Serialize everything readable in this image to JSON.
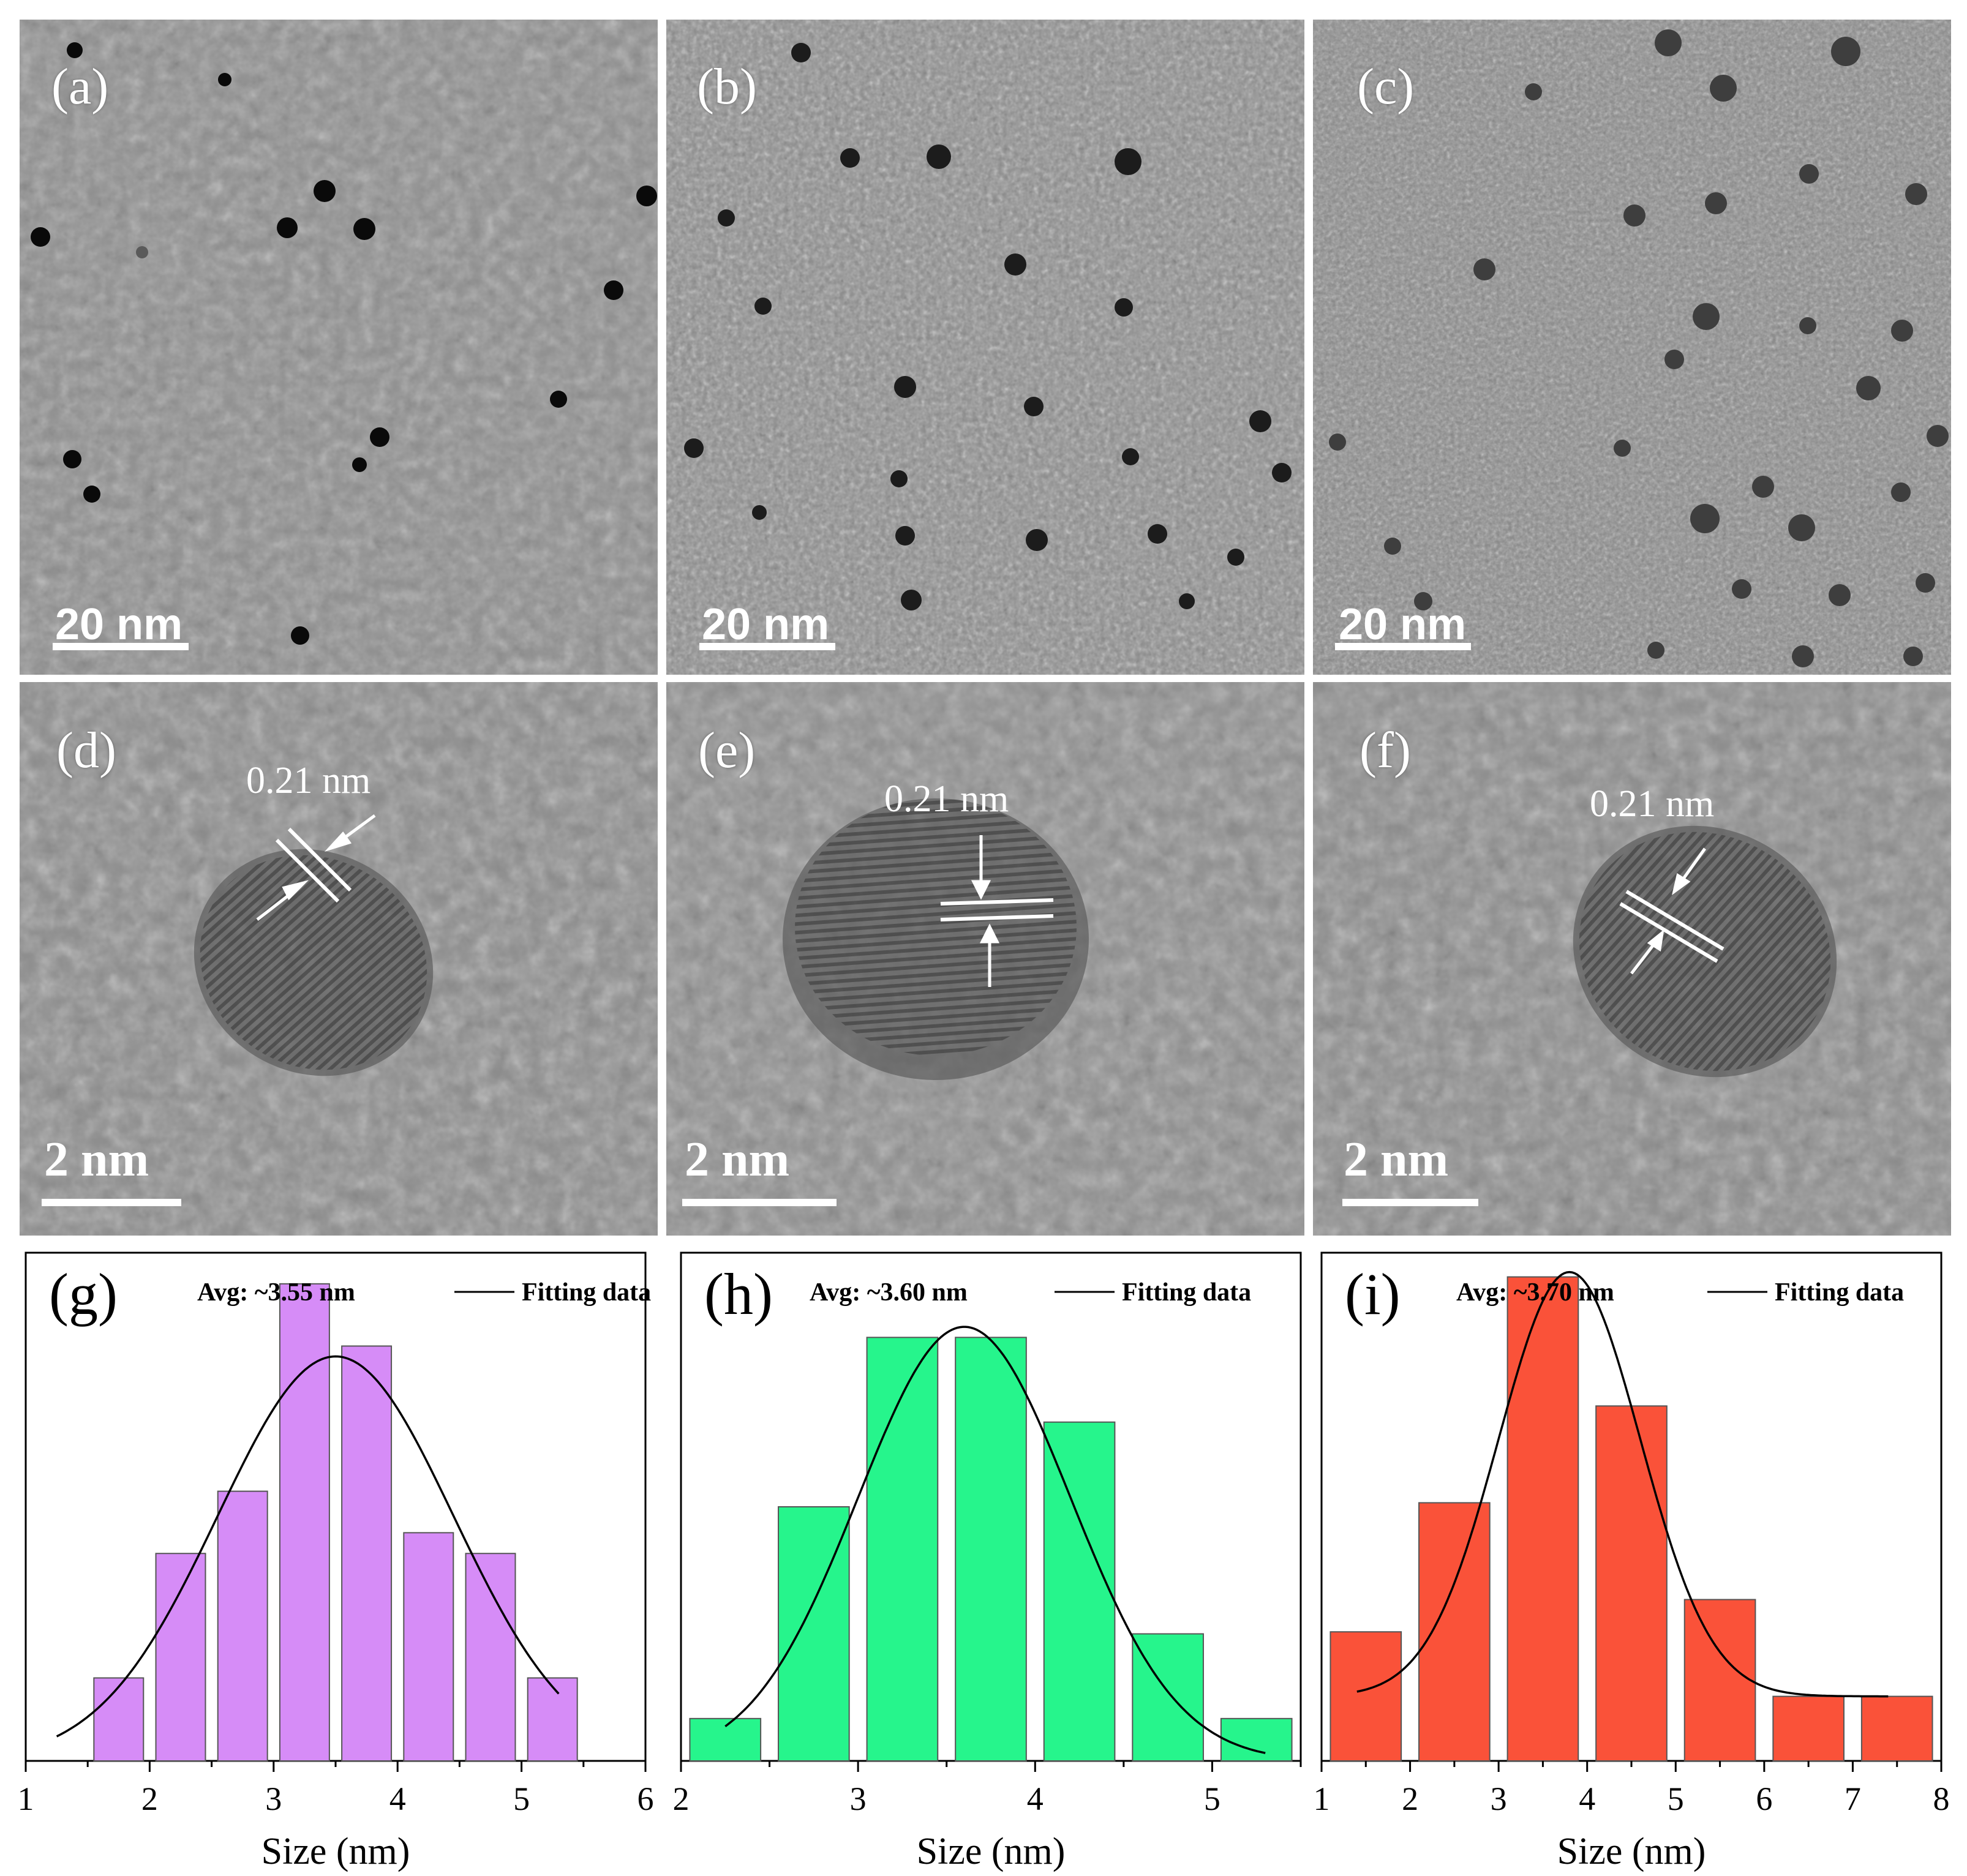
{
  "figure": {
    "tem_panels": [
      {
        "label": "(a)",
        "scale": "20 nm"
      },
      {
        "label": "(b)",
        "scale": "20 nm"
      },
      {
        "label": "(c)",
        "scale": "20 nm"
      }
    ],
    "hrtem_panels": [
      {
        "label": "(d)",
        "scale": "2 nm",
        "spacing": "0.21 nm"
      },
      {
        "label": "(e)",
        "scale": "2 nm",
        "spacing": "0.21 nm"
      },
      {
        "label": "(f)",
        "scale": "2 nm",
        "spacing": "0.21 nm"
      }
    ]
  },
  "chart_data": [
    {
      "type": "bar",
      "panel_label": "(g)",
      "annotation": "Avg: ~3.55 nm",
      "legend": "Fitting data",
      "xlabel": "Size (nm)",
      "xlim": [
        1,
        6
      ],
      "x_ticks": [
        "1",
        "2",
        "3",
        "4",
        "5",
        "6"
      ],
      "bar_width": 0.4,
      "x": [
        1.75,
        2.25,
        2.75,
        3.25,
        3.75,
        4.25,
        4.75,
        5.25
      ],
      "values": [
        4,
        10,
        13,
        23,
        20,
        11,
        10,
        4
      ],
      "ylim": [
        0,
        24.5
      ],
      "color": "#d68cf7",
      "fit": {
        "mean": 3.5,
        "sigma": 0.95,
        "amplitude": 19.5,
        "x_range": [
          1.25,
          5.3
        ]
      }
    },
    {
      "type": "bar",
      "panel_label": "(h)",
      "annotation": "Avg: ~3.60 nm",
      "legend": "Fitting data",
      "xlabel": "Size (nm)",
      "xlim": [
        2,
        5.5
      ],
      "x_ticks": [
        "2",
        "3",
        "4",
        "5"
      ],
      "bar_width": 0.4,
      "x": [
        2.25,
        2.75,
        3.25,
        3.75,
        4.25,
        4.75,
        5.25
      ],
      "values": [
        2,
        12,
        20,
        20,
        16,
        6,
        2
      ],
      "ylim": [
        0,
        24
      ],
      "color": "#26f58c",
      "fit": {
        "mean": 3.6,
        "sigma": 0.6,
        "amplitude": 20.5,
        "x_range": [
          2.25,
          5.3
        ]
      }
    },
    {
      "type": "bar",
      "panel_label": "(i)",
      "annotation": "Avg: ~3.70 nm",
      "legend": "Fitting data",
      "xlabel": "Size (nm)",
      "xlim": [
        1,
        8
      ],
      "x_ticks": [
        "1",
        "2",
        "3",
        "4",
        "5",
        "6",
        "7",
        "8"
      ],
      "bar_width": 0.8,
      "x": [
        1.5,
        2.5,
        3.5,
        4.5,
        5.5,
        6.5,
        7.5
      ],
      "values": [
        8,
        16,
        30,
        22,
        10,
        4,
        4
      ],
      "ylim": [
        0,
        31.5
      ],
      "color": "#fa5239",
      "fit": {
        "mean": 3.8,
        "sigma": 0.8,
        "amplitude": 26.3,
        "baseline": 4.0,
        "x_range": [
          1.4,
          7.4
        ]
      }
    }
  ]
}
